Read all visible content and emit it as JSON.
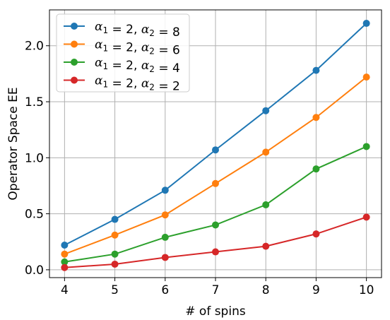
{
  "chart_data": {
    "type": "line",
    "xlabel": "# of spins",
    "ylabel": "Operator Space EE",
    "x": [
      4,
      5,
      6,
      7,
      8,
      9,
      10
    ],
    "xlim": [
      3.7,
      10.3
    ],
    "ylim": [
      -0.07,
      2.32
    ],
    "xticks": [
      4,
      5,
      6,
      7,
      8,
      9,
      10
    ],
    "yticks": [
      0.0,
      0.5,
      1.0,
      1.5,
      2.0
    ],
    "ytick_labels": [
      "0.0",
      "0.5",
      "1.0",
      "1.5",
      "2.0"
    ],
    "grid": true,
    "legend_placement": "top-left",
    "series": [
      {
        "name": "α1 = 2, α2 = 8",
        "a1": "2",
        "a2": "8",
        "color": "#1f77b4",
        "values": [
          0.22,
          0.45,
          0.71,
          1.07,
          1.42,
          1.78,
          2.2
        ]
      },
      {
        "name": "α1 = 2, α2 = 6",
        "a1": "2",
        "a2": "6",
        "color": "#ff7f0e",
        "values": [
          0.14,
          0.31,
          0.49,
          0.77,
          1.05,
          1.36,
          1.72
        ]
      },
      {
        "name": "α1 = 2, α2 = 4",
        "a1": "2",
        "a2": "4",
        "color": "#2ca02c",
        "values": [
          0.07,
          0.14,
          0.29,
          0.4,
          0.58,
          0.9,
          1.1
        ]
      },
      {
        "name": "α1 = 2, α2 = 2",
        "a1": "2",
        "a2": "2",
        "color": "#d62728",
        "values": [
          0.02,
          0.05,
          0.11,
          0.16,
          0.21,
          0.32,
          0.47
        ]
      }
    ]
  }
}
